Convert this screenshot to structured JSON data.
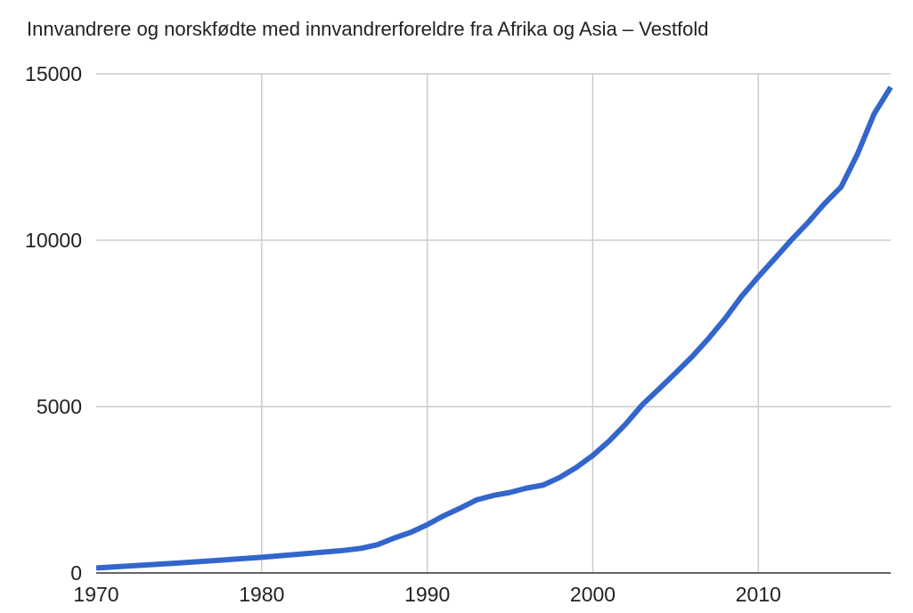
{
  "chart_data": {
    "type": "line",
    "title": "Innvandrere og norskfødte med innvandrerforeldre fra Afrika og Asia – Vestfold",
    "x": [
      1970,
      1975,
      1980,
      1985,
      1986,
      1987,
      1988,
      1989,
      1990,
      1991,
      1992,
      1993,
      1994,
      1995,
      1996,
      1997,
      1998,
      1999,
      2000,
      2001,
      2002,
      2003,
      2004,
      2005,
      2006,
      2007,
      2008,
      2009,
      2010,
      2011,
      2012,
      2013,
      2014,
      2015,
      2016,
      2017,
      2018
    ],
    "series": [
      {
        "name": "Vestfold",
        "color": "#3366cc",
        "values": [
          150,
          300,
          470,
          680,
          740,
          850,
          1050,
          1220,
          1450,
          1720,
          1950,
          2200,
          2330,
          2420,
          2550,
          2640,
          2870,
          3170,
          3530,
          3970,
          4480,
          5060,
          5530,
          6010,
          6500,
          7050,
          7650,
          8320,
          8900,
          9450,
          10010,
          10530,
          11100,
          11600,
          12600,
          13800,
          14600
        ]
      }
    ],
    "xlim": [
      1970,
      2018
    ],
    "xticks": [
      1970,
      1980,
      1990,
      2000,
      2010
    ],
    "ylim": [
      0,
      15000
    ],
    "yticks": [
      0,
      5000,
      10000,
      15000
    ],
    "grid": true
  }
}
